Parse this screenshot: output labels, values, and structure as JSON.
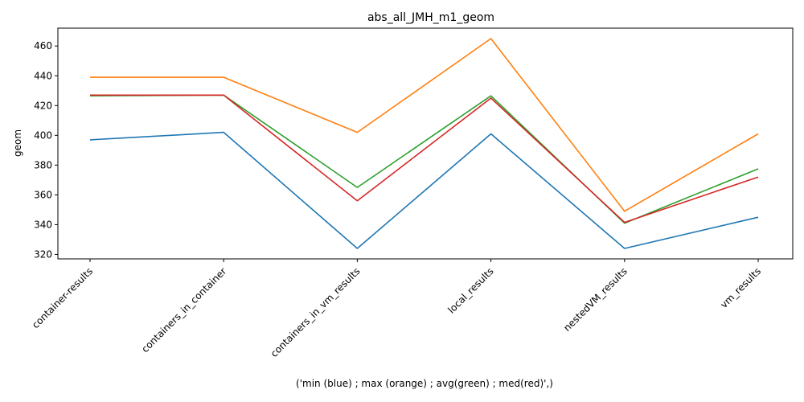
{
  "chart_data": {
    "type": "line",
    "title": "abs_all_JMH_m1_geom",
    "xlabel": "('min (blue) ; max (orange) ; avg(green) ; med(red)',)",
    "ylabel": "geom",
    "categories": [
      "container-results",
      "containers_in_container",
      "containers_in_vm_results",
      "local_results",
      "nestedVM_results",
      "vm_results"
    ],
    "ylim": [
      317,
      472
    ],
    "yticks": [
      320,
      340,
      360,
      380,
      400,
      420,
      440,
      460
    ],
    "grid": false,
    "series": [
      {
        "color": "#1f77b4",
        "values": [
          397,
          402,
          324,
          401,
          324,
          345
        ]
      },
      {
        "color": "#ff7f0e",
        "values": [
          439,
          439,
          402,
          465,
          349,
          401
        ]
      },
      {
        "color": "#2ca02c",
        "values": [
          426.5,
          427,
          365,
          426.5,
          341,
          377.5
        ]
      },
      {
        "color": "#d62728",
        "values": [
          427,
          427,
          356,
          425,
          341.5,
          372
        ]
      }
    ]
  }
}
